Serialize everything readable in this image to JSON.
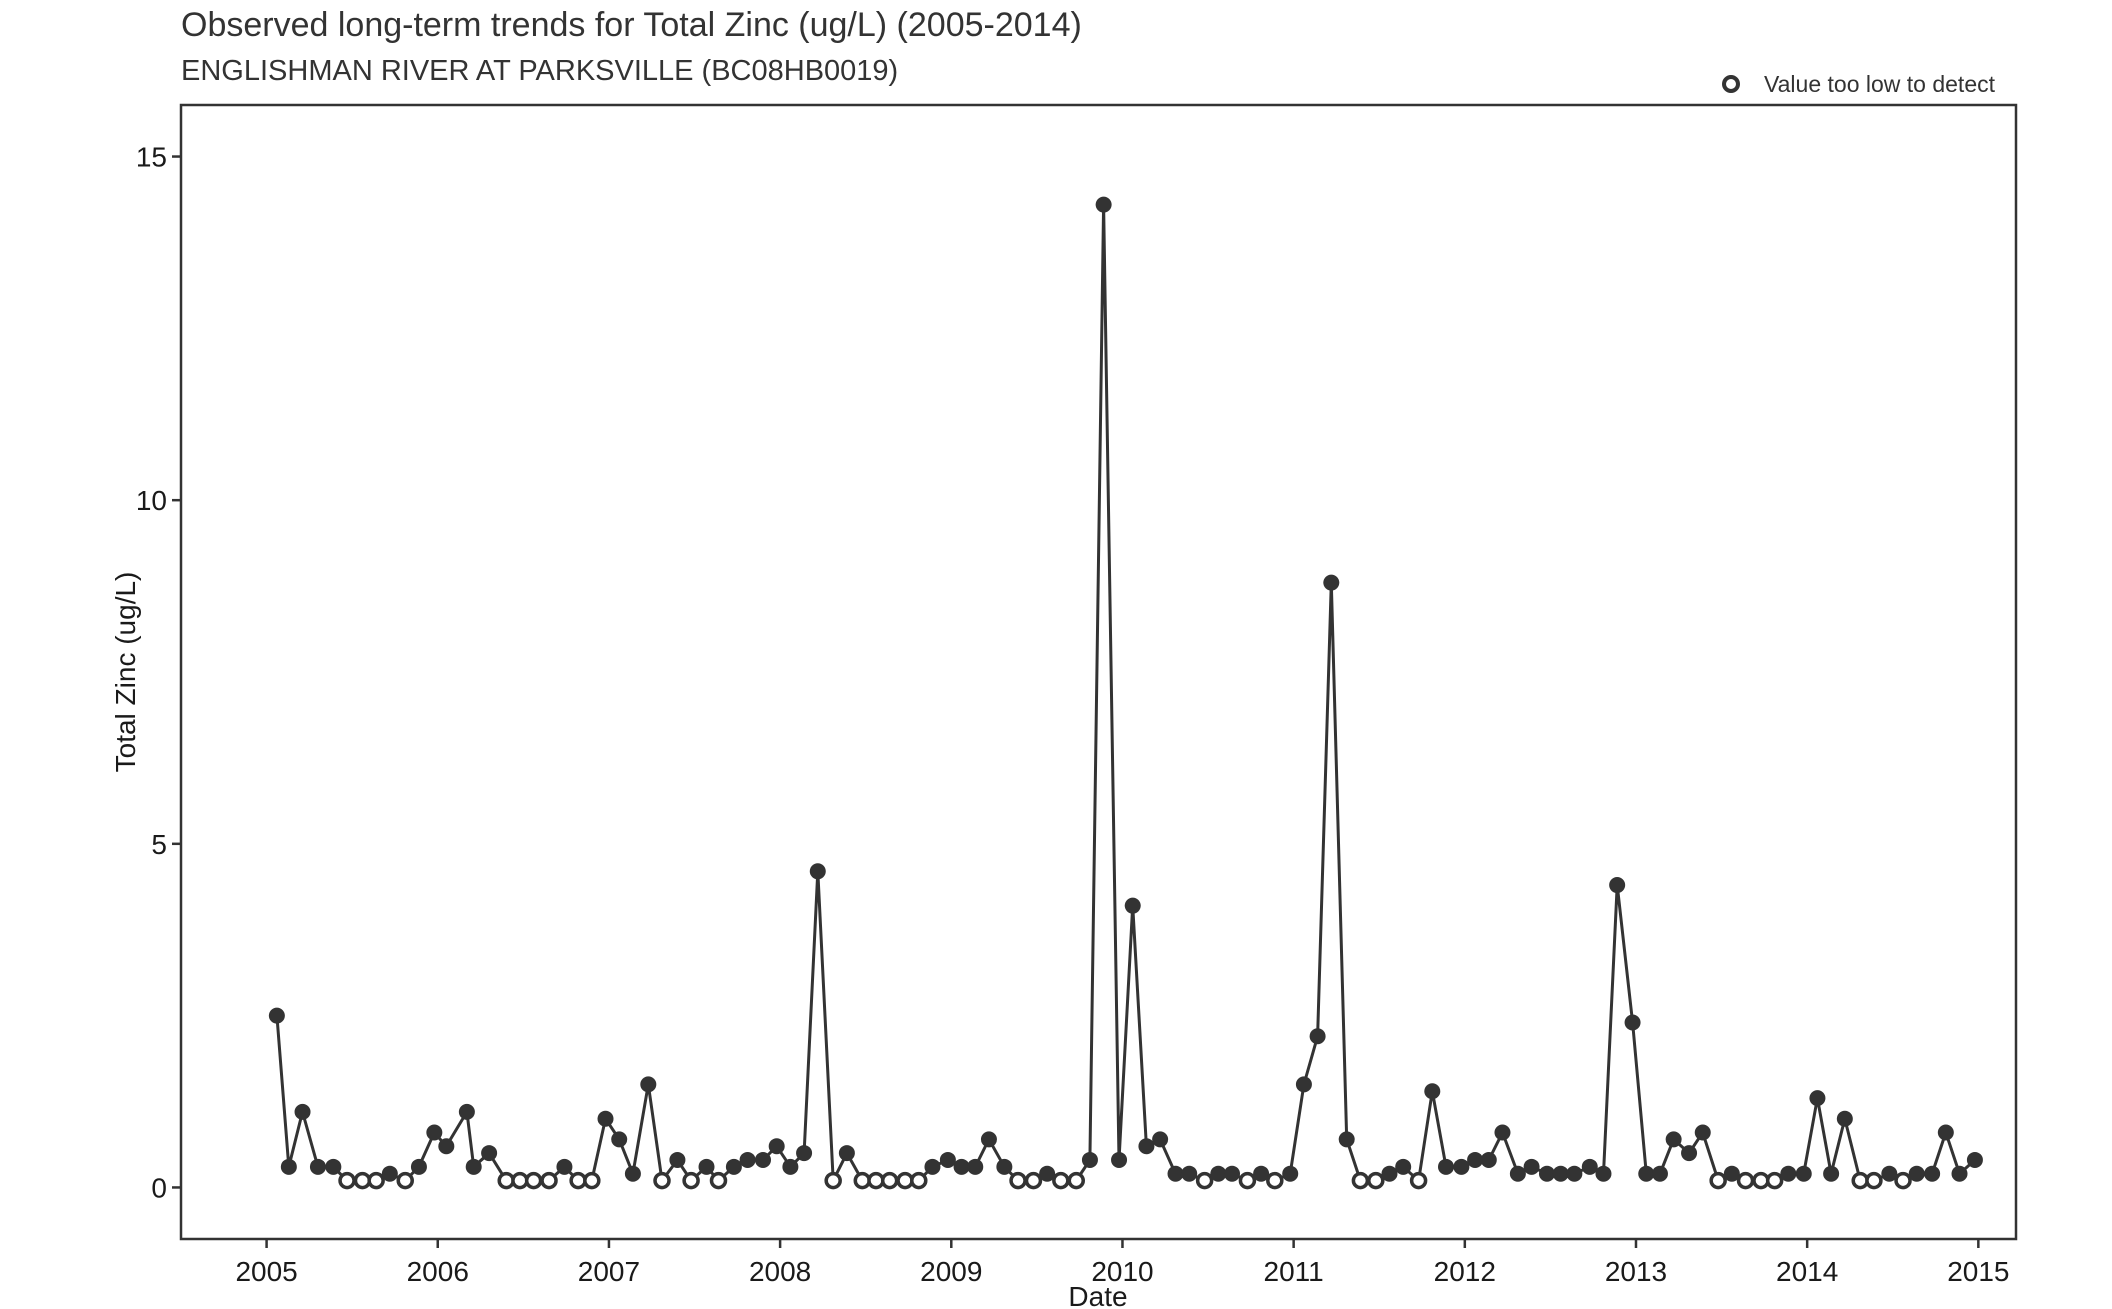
{
  "chart_data": {
    "type": "line",
    "title": "Observed long-term trends for Total Zinc (ug/L) (2005-2014)",
    "subtitle": "ENGLISHMAN RIVER AT PARKSVILLE (BC08HB0019)",
    "xlabel": "Date",
    "ylabel": "Total Zinc (ug/L)",
    "xlim": [
      2004.5,
      2015.22
    ],
    "ylim": [
      -0.75,
      15.75
    ],
    "x_ticks": [
      "2005",
      "2006",
      "2007",
      "2008",
      "2009",
      "2010",
      "2011",
      "2012",
      "2013",
      "2014",
      "2015"
    ],
    "x_tick_values": [
      2005,
      2006,
      2007,
      2008,
      2009,
      2010,
      2011,
      2012,
      2013,
      2014,
      2015
    ],
    "y_ticks": [
      "0",
      "5",
      "10",
      "15"
    ],
    "y_tick_values": [
      0,
      5,
      10,
      15
    ],
    "grid": false,
    "legend": {
      "position": "top-right",
      "entries": [
        {
          "marker": "open-circle",
          "label": "Value too low to detect"
        }
      ]
    },
    "colors": {
      "line": "#333333",
      "marker": "#333333",
      "background": "#ffffff"
    },
    "series": [
      {
        "points": [
          {
            "x": 2005.06,
            "y": 2.5,
            "below_detection": false
          },
          {
            "x": 2005.13,
            "y": 0.3,
            "below_detection": false
          },
          {
            "x": 2005.21,
            "y": 1.1,
            "below_detection": false
          },
          {
            "x": 2005.3,
            "y": 0.3,
            "below_detection": false
          },
          {
            "x": 2005.39,
            "y": 0.3,
            "below_detection": false
          },
          {
            "x": 2005.47,
            "y": 0.1,
            "below_detection": true
          },
          {
            "x": 2005.56,
            "y": 0.1,
            "below_detection": true
          },
          {
            "x": 2005.64,
            "y": 0.1,
            "below_detection": true
          },
          {
            "x": 2005.72,
            "y": 0.2,
            "below_detection": false
          },
          {
            "x": 2005.81,
            "y": 0.1,
            "below_detection": true
          },
          {
            "x": 2005.89,
            "y": 0.3,
            "below_detection": false
          },
          {
            "x": 2005.98,
            "y": 0.8,
            "below_detection": false
          },
          {
            "x": 2006.05,
            "y": 0.6,
            "below_detection": false
          },
          {
            "x": 2006.17,
            "y": 1.1,
            "below_detection": false
          },
          {
            "x": 2006.21,
            "y": 0.3,
            "below_detection": false
          },
          {
            "x": 2006.3,
            "y": 0.5,
            "below_detection": false
          },
          {
            "x": 2006.4,
            "y": 0.1,
            "below_detection": true
          },
          {
            "x": 2006.48,
            "y": 0.1,
            "below_detection": true
          },
          {
            "x": 2006.56,
            "y": 0.1,
            "below_detection": true
          },
          {
            "x": 2006.65,
            "y": 0.1,
            "below_detection": true
          },
          {
            "x": 2006.74,
            "y": 0.3,
            "below_detection": false
          },
          {
            "x": 2006.82,
            "y": 0.1,
            "below_detection": true
          },
          {
            "x": 2006.9,
            "y": 0.1,
            "below_detection": true
          },
          {
            "x": 2006.98,
            "y": 1.0,
            "below_detection": false
          },
          {
            "x": 2007.06,
            "y": 0.7,
            "below_detection": false
          },
          {
            "x": 2007.14,
            "y": 0.2,
            "below_detection": false
          },
          {
            "x": 2007.23,
            "y": 1.5,
            "below_detection": false
          },
          {
            "x": 2007.31,
            "y": 0.1,
            "below_detection": true
          },
          {
            "x": 2007.4,
            "y": 0.4,
            "below_detection": false
          },
          {
            "x": 2007.48,
            "y": 0.1,
            "below_detection": true
          },
          {
            "x": 2007.57,
            "y": 0.3,
            "below_detection": false
          },
          {
            "x": 2007.64,
            "y": 0.1,
            "below_detection": true
          },
          {
            "x": 2007.73,
            "y": 0.3,
            "below_detection": false
          },
          {
            "x": 2007.81,
            "y": 0.4,
            "below_detection": false
          },
          {
            "x": 2007.9,
            "y": 0.4,
            "below_detection": false
          },
          {
            "x": 2007.98,
            "y": 0.6,
            "below_detection": false
          },
          {
            "x": 2008.06,
            "y": 0.3,
            "below_detection": false
          },
          {
            "x": 2008.14,
            "y": 0.5,
            "below_detection": false
          },
          {
            "x": 2008.22,
            "y": 4.6,
            "below_detection": false
          },
          {
            "x": 2008.31,
            "y": 0.1,
            "below_detection": true
          },
          {
            "x": 2008.39,
            "y": 0.5,
            "below_detection": false
          },
          {
            "x": 2008.48,
            "y": 0.1,
            "below_detection": true
          },
          {
            "x": 2008.56,
            "y": 0.1,
            "below_detection": true
          },
          {
            "x": 2008.64,
            "y": 0.1,
            "below_detection": true
          },
          {
            "x": 2008.73,
            "y": 0.1,
            "below_detection": true
          },
          {
            "x": 2008.81,
            "y": 0.1,
            "below_detection": true
          },
          {
            "x": 2008.89,
            "y": 0.3,
            "below_detection": false
          },
          {
            "x": 2008.98,
            "y": 0.4,
            "below_detection": false
          },
          {
            "x": 2009.06,
            "y": 0.3,
            "below_detection": false
          },
          {
            "x": 2009.14,
            "y": 0.3,
            "below_detection": false
          },
          {
            "x": 2009.22,
            "y": 0.7,
            "below_detection": false
          },
          {
            "x": 2009.31,
            "y": 0.3,
            "below_detection": false
          },
          {
            "x": 2009.39,
            "y": 0.1,
            "below_detection": true
          },
          {
            "x": 2009.48,
            "y": 0.1,
            "below_detection": true
          },
          {
            "x": 2009.56,
            "y": 0.2,
            "below_detection": false
          },
          {
            "x": 2009.64,
            "y": 0.1,
            "below_detection": true
          },
          {
            "x": 2009.73,
            "y": 0.1,
            "below_detection": true
          },
          {
            "x": 2009.81,
            "y": 0.4,
            "below_detection": false
          },
          {
            "x": 2009.89,
            "y": 14.3,
            "below_detection": false
          },
          {
            "x": 2009.98,
            "y": 0.4,
            "below_detection": false
          },
          {
            "x": 2010.06,
            "y": 4.1,
            "below_detection": false
          },
          {
            "x": 2010.14,
            "y": 0.6,
            "below_detection": false
          },
          {
            "x": 2010.22,
            "y": 0.7,
            "below_detection": false
          },
          {
            "x": 2010.31,
            "y": 0.2,
            "below_detection": false
          },
          {
            "x": 2010.39,
            "y": 0.2,
            "below_detection": false
          },
          {
            "x": 2010.48,
            "y": 0.1,
            "below_detection": true
          },
          {
            "x": 2010.56,
            "y": 0.2,
            "below_detection": false
          },
          {
            "x": 2010.64,
            "y": 0.2,
            "below_detection": false
          },
          {
            "x": 2010.73,
            "y": 0.1,
            "below_detection": true
          },
          {
            "x": 2010.81,
            "y": 0.2,
            "below_detection": false
          },
          {
            "x": 2010.89,
            "y": 0.1,
            "below_detection": true
          },
          {
            "x": 2010.98,
            "y": 0.2,
            "below_detection": false
          },
          {
            "x": 2011.06,
            "y": 1.5,
            "below_detection": false
          },
          {
            "x": 2011.14,
            "y": 2.2,
            "below_detection": false
          },
          {
            "x": 2011.22,
            "y": 8.8,
            "below_detection": false
          },
          {
            "x": 2011.31,
            "y": 0.7,
            "below_detection": false
          },
          {
            "x": 2011.39,
            "y": 0.1,
            "below_detection": true
          },
          {
            "x": 2011.48,
            "y": 0.1,
            "below_detection": true
          },
          {
            "x": 2011.56,
            "y": 0.2,
            "below_detection": false
          },
          {
            "x": 2011.64,
            "y": 0.3,
            "below_detection": false
          },
          {
            "x": 2011.73,
            "y": 0.1,
            "below_detection": true
          },
          {
            "x": 2011.81,
            "y": 1.4,
            "below_detection": false
          },
          {
            "x": 2011.89,
            "y": 0.3,
            "below_detection": false
          },
          {
            "x": 2011.98,
            "y": 0.3,
            "below_detection": false
          },
          {
            "x": 2012.06,
            "y": 0.4,
            "below_detection": false
          },
          {
            "x": 2012.14,
            "y": 0.4,
            "below_detection": false
          },
          {
            "x": 2012.22,
            "y": 0.8,
            "below_detection": false
          },
          {
            "x": 2012.31,
            "y": 0.2,
            "below_detection": false
          },
          {
            "x": 2012.39,
            "y": 0.3,
            "below_detection": false
          },
          {
            "x": 2012.48,
            "y": 0.2,
            "below_detection": false
          },
          {
            "x": 2012.56,
            "y": 0.2,
            "below_detection": false
          },
          {
            "x": 2012.64,
            "y": 0.2,
            "below_detection": false
          },
          {
            "x": 2012.73,
            "y": 0.3,
            "below_detection": false
          },
          {
            "x": 2012.81,
            "y": 0.2,
            "below_detection": false
          },
          {
            "x": 2012.89,
            "y": 4.4,
            "below_detection": false
          },
          {
            "x": 2012.98,
            "y": 2.4,
            "below_detection": false
          },
          {
            "x": 2013.06,
            "y": 0.2,
            "below_detection": false
          },
          {
            "x": 2013.14,
            "y": 0.2,
            "below_detection": false
          },
          {
            "x": 2013.22,
            "y": 0.7,
            "below_detection": false
          },
          {
            "x": 2013.31,
            "y": 0.5,
            "below_detection": false
          },
          {
            "x": 2013.39,
            "y": 0.8,
            "below_detection": false
          },
          {
            "x": 2013.48,
            "y": 0.1,
            "below_detection": true
          },
          {
            "x": 2013.56,
            "y": 0.2,
            "below_detection": false
          },
          {
            "x": 2013.64,
            "y": 0.1,
            "below_detection": true
          },
          {
            "x": 2013.73,
            "y": 0.1,
            "below_detection": true
          },
          {
            "x": 2013.81,
            "y": 0.1,
            "below_detection": true
          },
          {
            "x": 2013.89,
            "y": 0.2,
            "below_detection": false
          },
          {
            "x": 2013.98,
            "y": 0.2,
            "below_detection": false
          },
          {
            "x": 2014.06,
            "y": 1.3,
            "below_detection": false
          },
          {
            "x": 2014.14,
            "y": 0.2,
            "below_detection": false
          },
          {
            "x": 2014.22,
            "y": 1.0,
            "below_detection": false
          },
          {
            "x": 2014.31,
            "y": 0.1,
            "below_detection": true
          },
          {
            "x": 2014.39,
            "y": 0.1,
            "below_detection": true
          },
          {
            "x": 2014.48,
            "y": 0.2,
            "below_detection": false
          },
          {
            "x": 2014.56,
            "y": 0.1,
            "below_detection": true
          },
          {
            "x": 2014.64,
            "y": 0.2,
            "below_detection": false
          },
          {
            "x": 2014.73,
            "y": 0.2,
            "below_detection": false
          },
          {
            "x": 2014.81,
            "y": 0.8,
            "below_detection": false
          },
          {
            "x": 2014.89,
            "y": 0.2,
            "below_detection": false
          },
          {
            "x": 2014.98,
            "y": 0.4,
            "below_detection": false
          }
        ]
      }
    ]
  }
}
